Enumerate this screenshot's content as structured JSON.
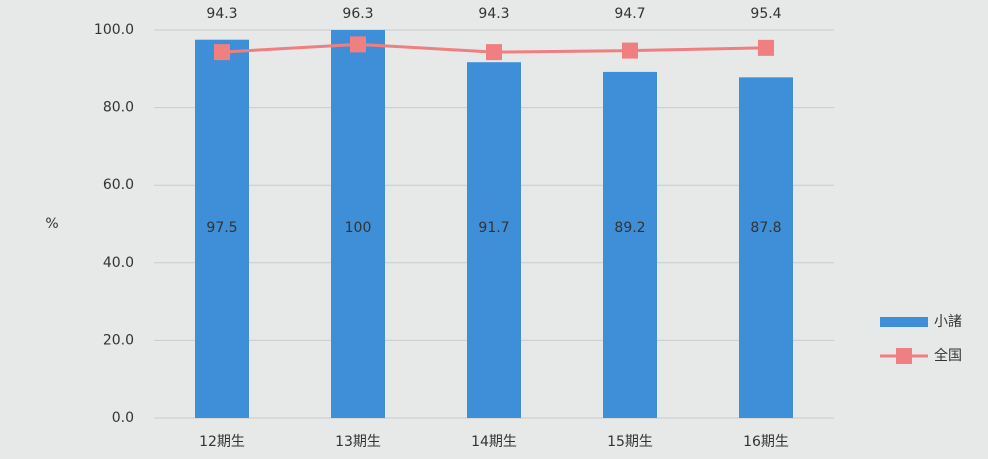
{
  "chart_data": {
    "type": "combo",
    "y_label": "%",
    "categories": [
      "12期生",
      "13期生",
      "14期生",
      "15期生",
      "16期生"
    ],
    "series": [
      {
        "name": "小諸",
        "type": "bar",
        "color": "#3f8fd8",
        "values": [
          97.5,
          100,
          91.7,
          89.2,
          87.8
        ]
      },
      {
        "name": "全国",
        "type": "line",
        "color": "#ef7f80",
        "values": [
          94.3,
          96.3,
          94.3,
          94.7,
          95.4
        ]
      }
    ],
    "ylim": [
      0,
      100
    ],
    "yticks": [
      {
        "value": 0,
        "label": "0.0"
      },
      {
        "value": 20,
        "label": "20.0"
      },
      {
        "value": 40,
        "label": "40.0"
      },
      {
        "value": 60,
        "label": "60.0"
      },
      {
        "value": 80,
        "label": "80.0"
      },
      {
        "value": 100,
        "label": "100.0"
      }
    ],
    "grid": true,
    "legend": "right"
  }
}
